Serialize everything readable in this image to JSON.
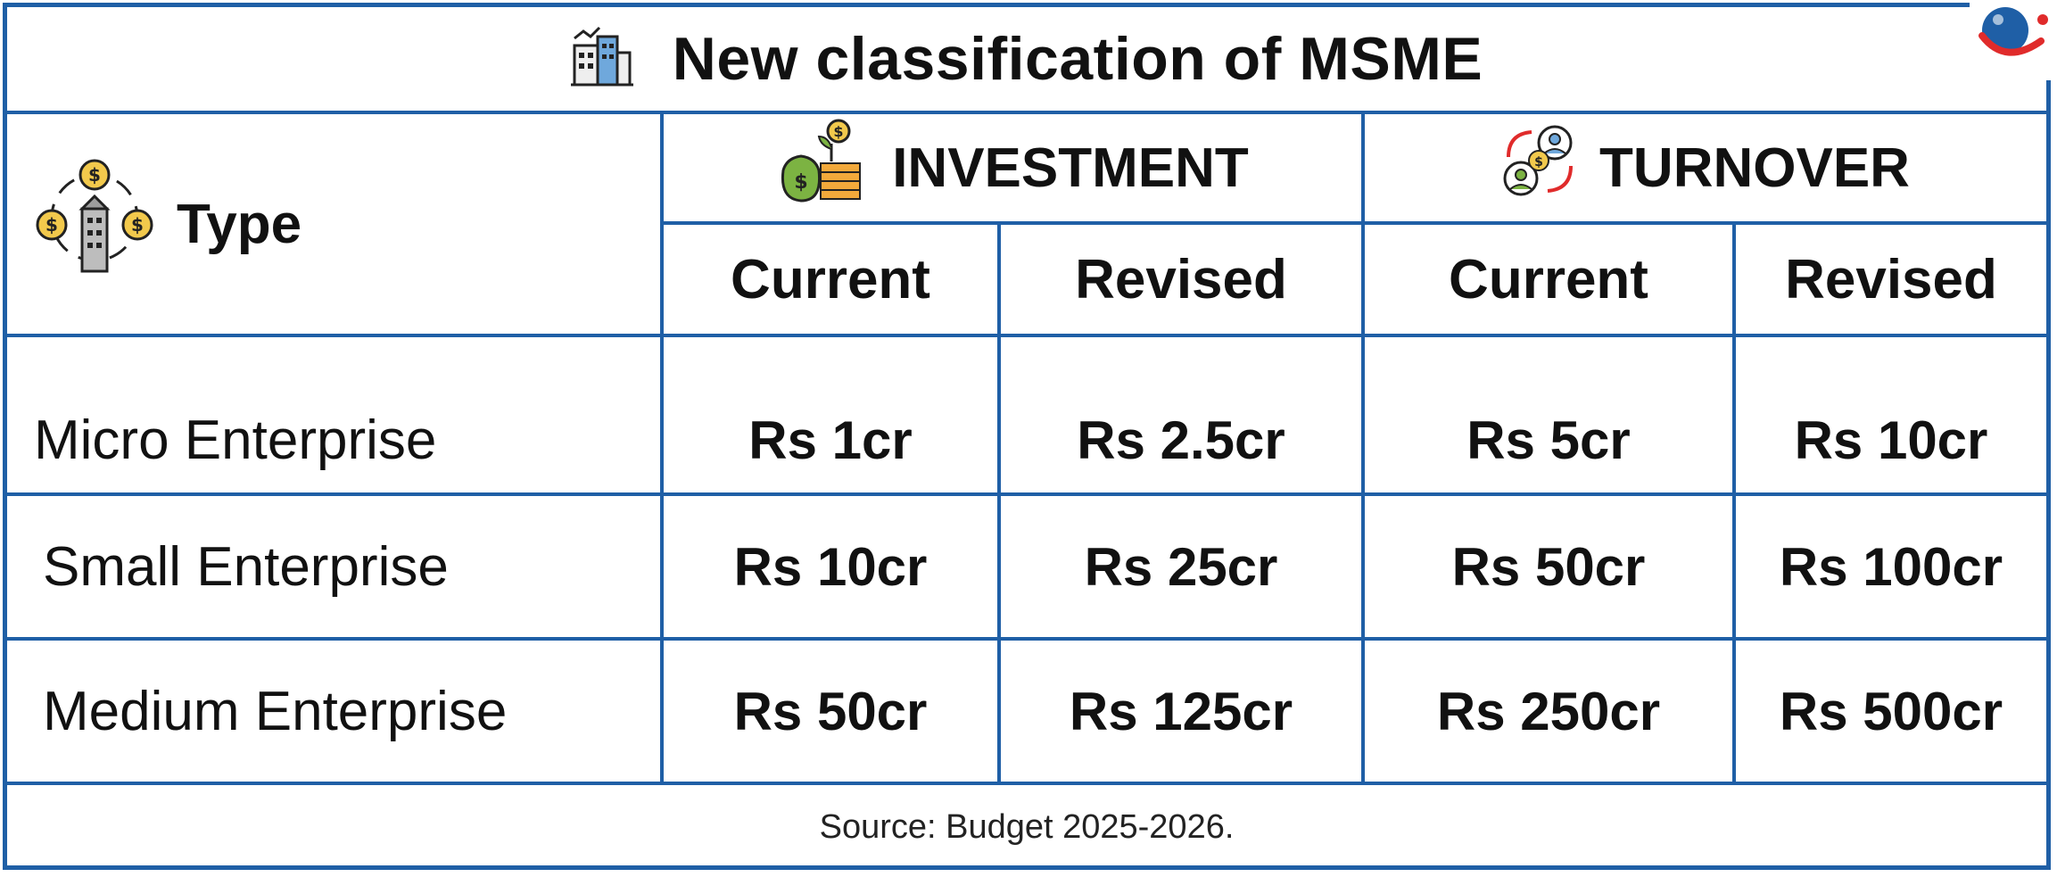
{
  "title": "New classification of MSME",
  "header": {
    "type_label": "Type",
    "investment_label": "INVESTMENT",
    "turnover_label": "TURNOVER",
    "sub": {
      "inv_current": "Current",
      "inv_revised": "Revised",
      "turn_current": "Current",
      "turn_revised": "Revised"
    }
  },
  "rows": [
    {
      "type": "Micro Enterprise",
      "inv_current": "Rs 1cr",
      "inv_revised": "Rs 2.5cr",
      "turn_current": "Rs 5cr",
      "turn_revised": "Rs 10cr"
    },
    {
      "type": "Small Enterprise",
      "inv_current": "Rs 10cr",
      "inv_revised": "Rs 25cr",
      "turn_current": "Rs 50cr",
      "turn_revised": "Rs 100cr"
    },
    {
      "type": "Medium Enterprise",
      "inv_current": "Rs 50cr",
      "inv_revised": "Rs 125cr",
      "turn_current": "Rs 250cr",
      "turn_revised": "Rs 500cr"
    }
  ],
  "source": "Source: Budget 2025-2026.",
  "icons": {
    "title_icon": "city-buildings-icon",
    "type_icon": "building-money-icon",
    "investment_icon": "money-bag-coins-icon",
    "turnover_icon": "people-exchange-icon",
    "logo": "brand-logo-icon"
  },
  "colors": {
    "border": "#1f5fa6",
    "text": "#111111",
    "coin": "#f2c94c",
    "logo_blue": "#1f5fa6",
    "logo_red": "#e02b2b"
  }
}
